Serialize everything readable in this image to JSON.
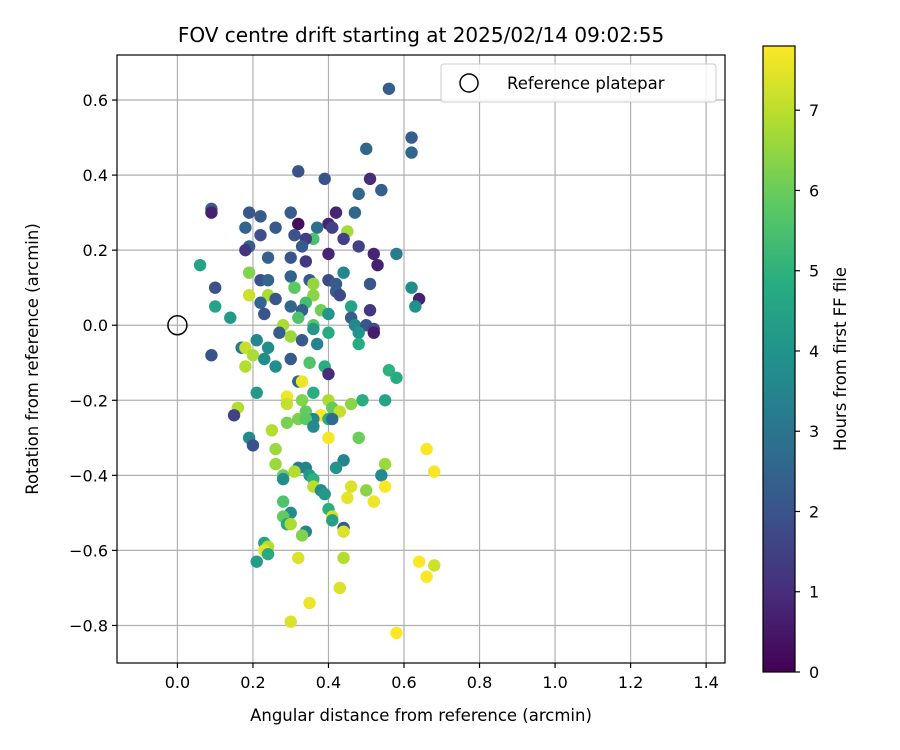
{
  "chart_data": {
    "type": "scatter",
    "title": "FOV centre drift starting at 2025/02/14 09:02:55",
    "xlabel": "Angular distance from reference (arcmin)",
    "ylabel": "Rotation from reference (arcmin)",
    "xlim": [
      -0.16,
      1.45
    ],
    "ylim": [
      -0.9,
      0.72
    ],
    "xticks": [
      0.0,
      0.2,
      0.4,
      0.6,
      0.8,
      1.0,
      1.2,
      1.4
    ],
    "xtick_labels": [
      "0.0",
      "0.2",
      "0.4",
      "0.6",
      "0.8",
      "1.0",
      "1.2",
      "1.4"
    ],
    "yticks": [
      -0.8,
      -0.6,
      -0.4,
      -0.2,
      0.0,
      0.2,
      0.4,
      0.6
    ],
    "ytick_labels": [
      "−0.8",
      "−0.6",
      "−0.4",
      "−0.2",
      "0.0",
      "0.2",
      "0.4",
      "0.6"
    ],
    "grid": true,
    "colormap": "viridis",
    "colorbar": {
      "label": "Hours from first FF file",
      "range": [
        0,
        7.8
      ],
      "ticks": [
        0,
        1,
        2,
        3,
        4,
        5,
        6,
        7
      ],
      "tick_labels": [
        "0",
        "1",
        "2",
        "3",
        "4",
        "5",
        "6",
        "7"
      ]
    },
    "legend": {
      "position": "top-right",
      "entry": "Reference platepar"
    },
    "reference": {
      "x": 0.0,
      "y": 0.0,
      "marker": "open-circle"
    },
    "points": [
      {
        "x": 0.56,
        "y": 0.63,
        "h": 2.3
      },
      {
        "x": 0.62,
        "y": 0.5,
        "h": 2.3
      },
      {
        "x": 0.62,
        "y": 0.46,
        "h": 2.6
      },
      {
        "x": 0.5,
        "y": 0.47,
        "h": 2.6
      },
      {
        "x": 0.32,
        "y": 0.41,
        "h": 2.0
      },
      {
        "x": 0.39,
        "y": 0.39,
        "h": 2.0
      },
      {
        "x": 0.51,
        "y": 0.39,
        "h": 1.0
      },
      {
        "x": 0.54,
        "y": 0.36,
        "h": 2.4
      },
      {
        "x": 0.48,
        "y": 0.35,
        "h": 2.6
      },
      {
        "x": 0.09,
        "y": 0.31,
        "h": 2.3
      },
      {
        "x": 0.09,
        "y": 0.3,
        "h": 0.7
      },
      {
        "x": 0.19,
        "y": 0.3,
        "h": 2.1
      },
      {
        "x": 0.3,
        "y": 0.3,
        "h": 2.3
      },
      {
        "x": 0.42,
        "y": 0.3,
        "h": 0.8
      },
      {
        "x": 0.47,
        "y": 0.3,
        "h": 2.6
      },
      {
        "x": 0.22,
        "y": 0.29,
        "h": 2.2
      },
      {
        "x": 0.32,
        "y": 0.27,
        "h": 0.3
      },
      {
        "x": 0.4,
        "y": 0.27,
        "h": 0.8
      },
      {
        "x": 0.41,
        "y": 0.26,
        "h": 1.5
      },
      {
        "x": 0.37,
        "y": 0.26,
        "h": 2.8
      },
      {
        "x": 0.18,
        "y": 0.26,
        "h": 2.5
      },
      {
        "x": 0.26,
        "y": 0.26,
        "h": 2.2
      },
      {
        "x": 0.45,
        "y": 0.25,
        "h": 6.7
      },
      {
        "x": 0.22,
        "y": 0.24,
        "h": 1.9
      },
      {
        "x": 0.31,
        "y": 0.24,
        "h": 2.0
      },
      {
        "x": 0.36,
        "y": 0.23,
        "h": 5.5
      },
      {
        "x": 0.44,
        "y": 0.23,
        "h": 1.5
      },
      {
        "x": 0.34,
        "y": 0.23,
        "h": 1.4
      },
      {
        "x": 0.19,
        "y": 0.21,
        "h": 2.4
      },
      {
        "x": 0.33,
        "y": 0.21,
        "h": 2.2
      },
      {
        "x": 0.48,
        "y": 0.21,
        "h": 1.5
      },
      {
        "x": 0.18,
        "y": 0.2,
        "h": 1.2
      },
      {
        "x": 0.4,
        "y": 0.19,
        "h": 0.8
      },
      {
        "x": 0.58,
        "y": 0.19,
        "h": 3.2
      },
      {
        "x": 0.52,
        "y": 0.19,
        "h": 0.8
      },
      {
        "x": 0.3,
        "y": 0.18,
        "h": 2.0
      },
      {
        "x": 0.24,
        "y": 0.18,
        "h": 2.4
      },
      {
        "x": 0.34,
        "y": 0.17,
        "h": 1.3
      },
      {
        "x": 0.06,
        "y": 0.16,
        "h": 4.5
      },
      {
        "x": 0.53,
        "y": 0.16,
        "h": 0.7
      },
      {
        "x": 0.19,
        "y": 0.14,
        "h": 6.3
      },
      {
        "x": 0.44,
        "y": 0.14,
        "h": 3.6
      },
      {
        "x": 0.3,
        "y": 0.13,
        "h": 2.5
      },
      {
        "x": 0.35,
        "y": 0.12,
        "h": 2.2
      },
      {
        "x": 0.22,
        "y": 0.12,
        "h": 2.0
      },
      {
        "x": 0.24,
        "y": 0.12,
        "h": 2.6
      },
      {
        "x": 0.4,
        "y": 0.12,
        "h": 1.8
      },
      {
        "x": 0.51,
        "y": 0.11,
        "h": 2.1
      },
      {
        "x": 0.36,
        "y": 0.11,
        "h": 6.5
      },
      {
        "x": 0.42,
        "y": 0.11,
        "h": 2.3
      },
      {
        "x": 0.1,
        "y": 0.1,
        "h": 1.9
      },
      {
        "x": 0.62,
        "y": 0.1,
        "h": 3.8
      },
      {
        "x": 0.31,
        "y": 0.1,
        "h": 5.8
      },
      {
        "x": 0.19,
        "y": 0.08,
        "h": 7.2
      },
      {
        "x": 0.42,
        "y": 0.09,
        "h": 2.3
      },
      {
        "x": 0.43,
        "y": 0.08,
        "h": 1.7
      },
      {
        "x": 0.24,
        "y": 0.08,
        "h": 6.8
      },
      {
        "x": 0.36,
        "y": 0.08,
        "h": 6.4
      },
      {
        "x": 0.26,
        "y": 0.07,
        "h": 2.1
      },
      {
        "x": 0.64,
        "y": 0.07,
        "h": 0.7
      },
      {
        "x": 0.22,
        "y": 0.06,
        "h": 2.5
      },
      {
        "x": 0.34,
        "y": 0.06,
        "h": 5.4
      },
      {
        "x": 0.3,
        "y": 0.05,
        "h": 2.6
      },
      {
        "x": 0.46,
        "y": 0.05,
        "h": 4.5
      },
      {
        "x": 0.63,
        "y": 0.05,
        "h": 3.9
      },
      {
        "x": 0.1,
        "y": 0.05,
        "h": 4.5
      },
      {
        "x": 0.38,
        "y": 0.04,
        "h": 6.1
      },
      {
        "x": 0.33,
        "y": 0.04,
        "h": 2.4
      },
      {
        "x": 0.51,
        "y": 0.04,
        "h": 1.2
      },
      {
        "x": 0.23,
        "y": 0.03,
        "h": 2.0
      },
      {
        "x": 0.4,
        "y": 0.03,
        "h": 4.0
      },
      {
        "x": 0.14,
        "y": 0.02,
        "h": 4.2
      },
      {
        "x": 0.46,
        "y": 0.02,
        "h": 2.3
      },
      {
        "x": 0.32,
        "y": 0.02,
        "h": 5.6
      },
      {
        "x": 0.28,
        "y": 0.0,
        "h": 6.8
      },
      {
        "x": 0.36,
        "y": 0.0,
        "h": 5.7
      },
      {
        "x": 0.47,
        "y": 0.0,
        "h": 3.6
      },
      {
        "x": 0.5,
        "y": 0.0,
        "h": 2.1
      },
      {
        "x": 0.52,
        "y": -0.01,
        "h": 1.7
      },
      {
        "x": 0.36,
        "y": -0.01,
        "h": 4.1
      },
      {
        "x": 0.27,
        "y": -0.02,
        "h": 2.3
      },
      {
        "x": 0.4,
        "y": -0.02,
        "h": 4.8
      },
      {
        "x": 0.52,
        "y": -0.02,
        "h": 0.6
      },
      {
        "x": 0.48,
        "y": -0.02,
        "h": 4.0
      },
      {
        "x": 0.3,
        "y": -0.03,
        "h": 6.6
      },
      {
        "x": 0.21,
        "y": -0.04,
        "h": 3.6
      },
      {
        "x": 0.33,
        "y": -0.04,
        "h": 2.2
      },
      {
        "x": 0.48,
        "y": -0.05,
        "h": 4.8
      },
      {
        "x": 0.37,
        "y": -0.05,
        "h": 3.5
      },
      {
        "x": 0.17,
        "y": -0.06,
        "h": 3.1
      },
      {
        "x": 0.18,
        "y": -0.06,
        "h": 7.1
      },
      {
        "x": 0.24,
        "y": -0.06,
        "h": 3.8
      },
      {
        "x": 0.09,
        "y": -0.08,
        "h": 2.0
      },
      {
        "x": 0.2,
        "y": -0.08,
        "h": 6.8
      },
      {
        "x": 0.3,
        "y": -0.09,
        "h": 2.2
      },
      {
        "x": 0.23,
        "y": -0.09,
        "h": 3.8
      },
      {
        "x": 0.35,
        "y": -0.1,
        "h": 5.6
      },
      {
        "x": 0.26,
        "y": -0.11,
        "h": 3.8
      },
      {
        "x": 0.18,
        "y": -0.11,
        "h": 6.9
      },
      {
        "x": 0.39,
        "y": -0.11,
        "h": 4.9
      },
      {
        "x": 0.56,
        "y": -0.12,
        "h": 5.0
      },
      {
        "x": 0.4,
        "y": -0.13,
        "h": 1.0
      },
      {
        "x": 0.58,
        "y": -0.14,
        "h": 4.8
      },
      {
        "x": 0.32,
        "y": -0.15,
        "h": 2.6
      },
      {
        "x": 0.33,
        "y": -0.15,
        "h": 7.6
      },
      {
        "x": 0.36,
        "y": -0.18,
        "h": 4.9
      },
      {
        "x": 0.21,
        "y": -0.18,
        "h": 4.2
      },
      {
        "x": 0.29,
        "y": -0.19,
        "h": 7.6
      },
      {
        "x": 0.33,
        "y": -0.2,
        "h": 6.3
      },
      {
        "x": 0.49,
        "y": -0.2,
        "h": 4.9
      },
      {
        "x": 0.55,
        "y": -0.2,
        "h": 4.5
      },
      {
        "x": 0.4,
        "y": -0.2,
        "h": 6.8
      },
      {
        "x": 0.29,
        "y": -0.21,
        "h": 7.1
      },
      {
        "x": 0.16,
        "y": -0.22,
        "h": 6.9
      },
      {
        "x": 0.46,
        "y": -0.21,
        "h": 6.4
      },
      {
        "x": 0.41,
        "y": -0.22,
        "h": 5.9
      },
      {
        "x": 0.34,
        "y": -0.23,
        "h": 5.9
      },
      {
        "x": 0.43,
        "y": -0.23,
        "h": 7.1
      },
      {
        "x": 0.15,
        "y": -0.24,
        "h": 1.5
      },
      {
        "x": 0.38,
        "y": -0.24,
        "h": 7.8
      },
      {
        "x": 0.36,
        "y": -0.25,
        "h": 3.6
      },
      {
        "x": 0.32,
        "y": -0.25,
        "h": 6.2
      },
      {
        "x": 0.34,
        "y": -0.25,
        "h": 5.8
      },
      {
        "x": 0.4,
        "y": -0.25,
        "h": 4.9
      },
      {
        "x": 0.29,
        "y": -0.26,
        "h": 6.2
      },
      {
        "x": 0.41,
        "y": -0.25,
        "h": 2.7
      },
      {
        "x": 0.36,
        "y": -0.27,
        "h": 3.7
      },
      {
        "x": 0.25,
        "y": -0.28,
        "h": 6.9
      },
      {
        "x": 0.4,
        "y": -0.3,
        "h": 7.7
      },
      {
        "x": 0.48,
        "y": -0.3,
        "h": 6.0
      },
      {
        "x": 0.19,
        "y": -0.3,
        "h": 3.7
      },
      {
        "x": 0.2,
        "y": -0.32,
        "h": 2.0
      },
      {
        "x": 0.26,
        "y": -0.33,
        "h": 6.6
      },
      {
        "x": 0.66,
        "y": -0.33,
        "h": 7.8
      },
      {
        "x": 0.44,
        "y": -0.36,
        "h": 3.5
      },
      {
        "x": 0.55,
        "y": -0.37,
        "h": 6.6
      },
      {
        "x": 0.26,
        "y": -0.37,
        "h": 6.6
      },
      {
        "x": 0.42,
        "y": -0.38,
        "h": 4.0
      },
      {
        "x": 0.32,
        "y": -0.38,
        "h": 3.2
      },
      {
        "x": 0.34,
        "y": -0.38,
        "h": 3.4
      },
      {
        "x": 0.31,
        "y": -0.39,
        "h": 6.9
      },
      {
        "x": 0.68,
        "y": -0.39,
        "h": 7.7
      },
      {
        "x": 0.35,
        "y": -0.4,
        "h": 4.2
      },
      {
        "x": 0.54,
        "y": -0.4,
        "h": 3.7
      },
      {
        "x": 0.36,
        "y": -0.41,
        "h": 5.0
      },
      {
        "x": 0.28,
        "y": -0.4,
        "h": 6.1
      },
      {
        "x": 0.28,
        "y": -0.41,
        "h": 3.8
      },
      {
        "x": 0.36,
        "y": -0.43,
        "h": 7.0
      },
      {
        "x": 0.46,
        "y": -0.43,
        "h": 7.4
      },
      {
        "x": 0.55,
        "y": -0.43,
        "h": 7.8
      },
      {
        "x": 0.38,
        "y": -0.44,
        "h": 3.7
      },
      {
        "x": 0.5,
        "y": -0.44,
        "h": 6.4
      },
      {
        "x": 0.39,
        "y": -0.45,
        "h": 4.2
      },
      {
        "x": 0.45,
        "y": -0.46,
        "h": 7.5
      },
      {
        "x": 0.28,
        "y": -0.47,
        "h": 5.6
      },
      {
        "x": 0.52,
        "y": -0.47,
        "h": 7.6
      },
      {
        "x": 0.4,
        "y": -0.49,
        "h": 4.9
      },
      {
        "x": 0.3,
        "y": -0.5,
        "h": 3.8
      },
      {
        "x": 0.41,
        "y": -0.51,
        "h": 7.3
      },
      {
        "x": 0.28,
        "y": -0.51,
        "h": 5.9
      },
      {
        "x": 0.41,
        "y": -0.52,
        "h": 4.4
      },
      {
        "x": 0.29,
        "y": -0.53,
        "h": 4.6
      },
      {
        "x": 0.3,
        "y": -0.53,
        "h": 6.8
      },
      {
        "x": 0.44,
        "y": -0.54,
        "h": 2.2
      },
      {
        "x": 0.44,
        "y": -0.55,
        "h": 7.4
      },
      {
        "x": 0.34,
        "y": -0.55,
        "h": 3.5
      },
      {
        "x": 0.33,
        "y": -0.56,
        "h": 6.3
      },
      {
        "x": 0.23,
        "y": -0.58,
        "h": 4.5
      },
      {
        "x": 0.24,
        "y": -0.59,
        "h": 6.9
      },
      {
        "x": 0.23,
        "y": -0.6,
        "h": 7.5
      },
      {
        "x": 0.24,
        "y": -0.61,
        "h": 4.7
      },
      {
        "x": 0.44,
        "y": -0.62,
        "h": 6.9
      },
      {
        "x": 0.32,
        "y": -0.62,
        "h": 7.4
      },
      {
        "x": 0.64,
        "y": -0.63,
        "h": 7.9
      },
      {
        "x": 0.21,
        "y": -0.63,
        "h": 4.3
      },
      {
        "x": 0.68,
        "y": -0.64,
        "h": 7.2
      },
      {
        "x": 0.66,
        "y": -0.67,
        "h": 7.8
      },
      {
        "x": 0.43,
        "y": -0.7,
        "h": 7.4
      },
      {
        "x": 0.35,
        "y": -0.74,
        "h": 7.6
      },
      {
        "x": 0.3,
        "y": -0.79,
        "h": 7.4
      },
      {
        "x": 0.58,
        "y": -0.82,
        "h": 7.9
      }
    ]
  }
}
